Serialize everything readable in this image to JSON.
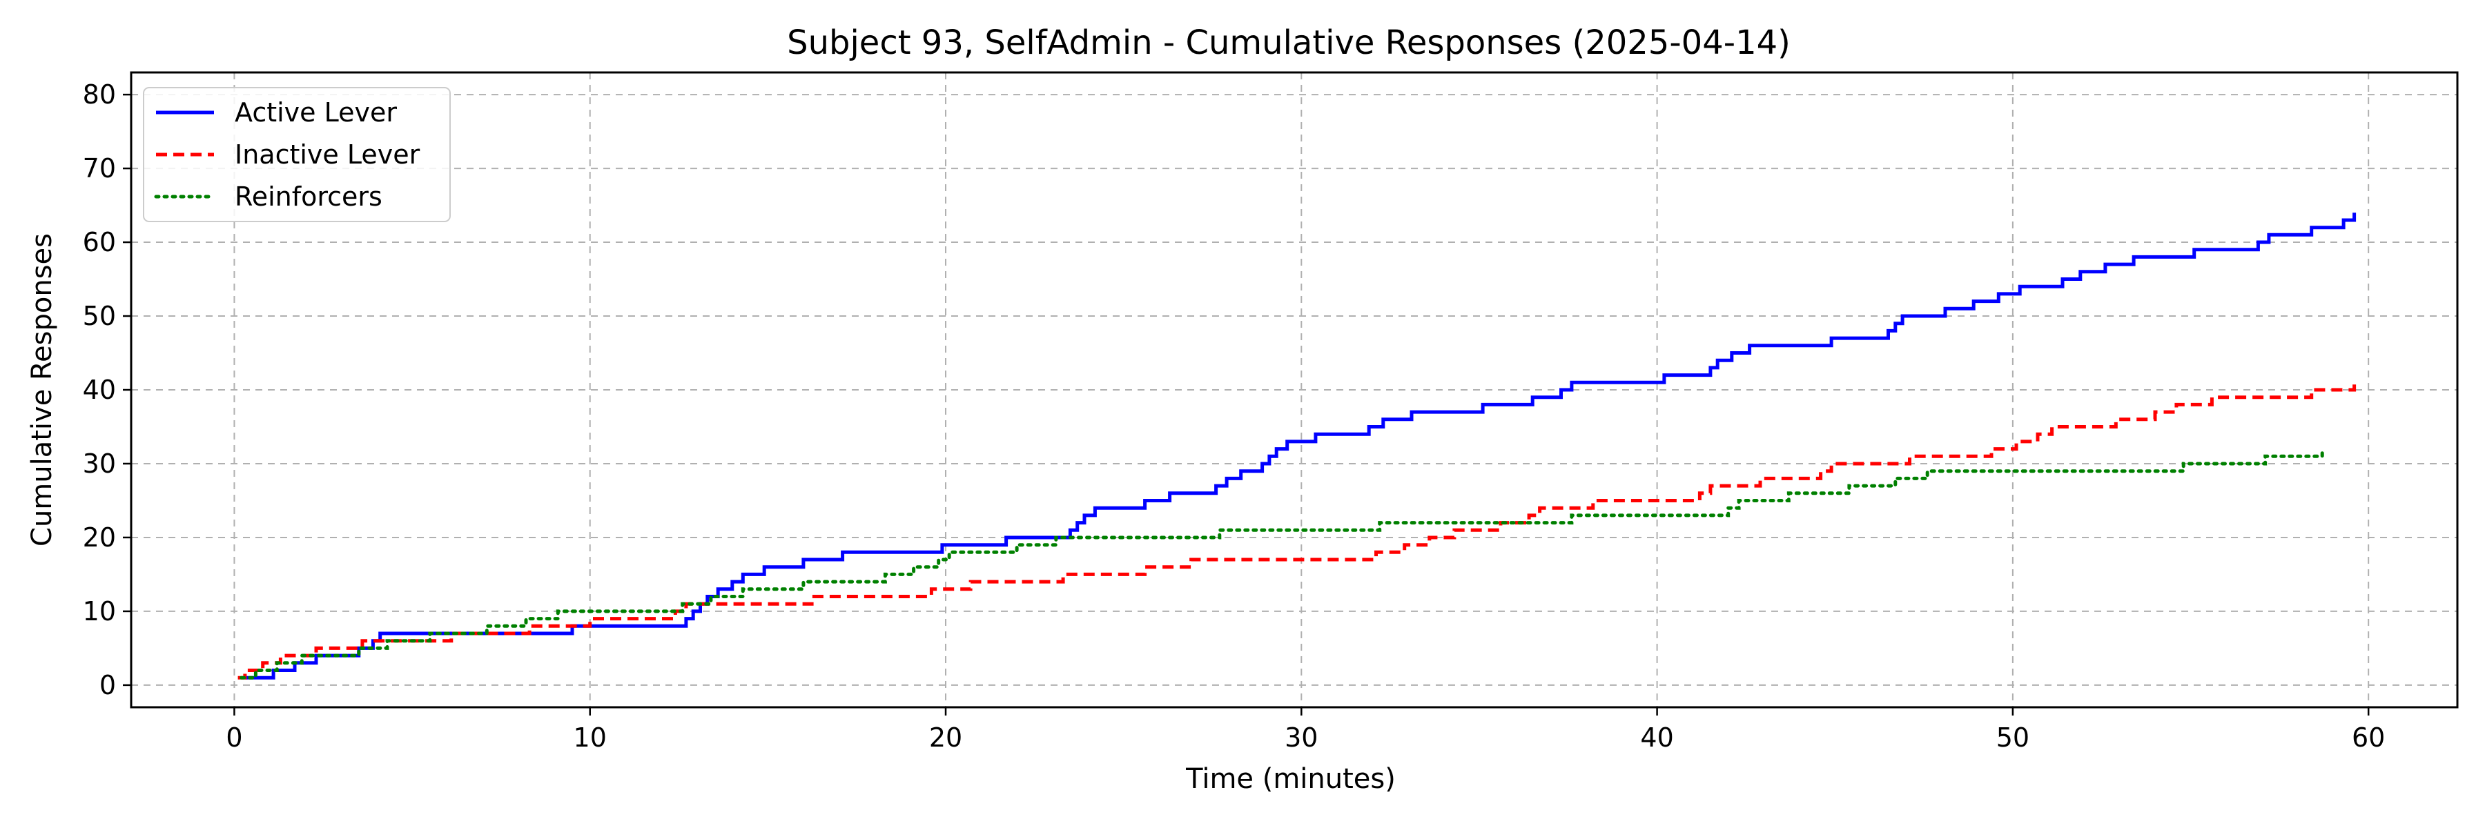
{
  "chart_data": {
    "type": "line",
    "title": "Subject 93, SelfAdmin - Cumulative Responses (2025-04-14)",
    "xlabel": "Time (minutes)",
    "ylabel": "Cumulative Responses",
    "xlim": [
      -2.9,
      62.5
    ],
    "ylim": [
      -3,
      83
    ],
    "xticks": [
      0,
      10,
      20,
      30,
      40,
      50,
      60
    ],
    "yticks": [
      0,
      10,
      20,
      30,
      40,
      50,
      60,
      70,
      80
    ],
    "grid": true,
    "grid_style": "dashed",
    "legend_position": "upper-left",
    "series": [
      {
        "name": "Active Lever",
        "color": "#0000ff",
        "line_style": "solid",
        "x": [
          0.3,
          1.1,
          1.7,
          2.3,
          3.5,
          3.9,
          4.1,
          9.5,
          12.7,
          12.9,
          13.1,
          13.3,
          13.6,
          14.0,
          14.3,
          14.9,
          16.0,
          17.1,
          19.9,
          21.7,
          23.5,
          23.7,
          23.9,
          24.2,
          25.6,
          26.3,
          27.6,
          27.9,
          28.3,
          28.9,
          29.1,
          29.3,
          29.6,
          30.4,
          31.9,
          32.3,
          33.1,
          35.1,
          36.5,
          37.3,
          37.6,
          40.2,
          41.5,
          41.7,
          42.1,
          42.6,
          44.9,
          46.5,
          46.7,
          46.9,
          48.1,
          48.9,
          49.6,
          50.2,
          51.4,
          51.9,
          52.6,
          53.4,
          55.1,
          56.9,
          57.2,
          58.4,
          59.3,
          59.6
        ],
        "y": [
          1,
          2,
          3,
          4,
          5,
          6,
          7,
          8,
          9,
          10,
          11,
          12,
          13,
          14,
          15,
          16,
          17,
          18,
          19,
          20,
          21,
          22,
          23,
          24,
          25,
          26,
          27,
          28,
          29,
          30,
          31,
          32,
          33,
          34,
          35,
          36,
          37,
          38,
          39,
          40,
          41,
          42,
          43,
          44,
          45,
          46,
          47,
          48,
          49,
          50,
          51,
          52,
          53,
          54,
          55,
          56,
          57,
          58,
          59,
          60,
          61,
          62,
          63,
          64
        ]
      },
      {
        "name": "Inactive Lever",
        "color": "#ff0000",
        "line_style": "dashed",
        "x": [
          0.1,
          0.3,
          0.8,
          1.3,
          2.3,
          3.6,
          6.1,
          8.3,
          10.0,
          12.4,
          12.7,
          16.3,
          19.6,
          20.7,
          23.3,
          25.6,
          26.9,
          32.1,
          32.9,
          33.6,
          34.3,
          35.6,
          36.4,
          36.7,
          38.2,
          41.2,
          41.5,
          42.9,
          44.6,
          44.9,
          47.1,
          49.4,
          50.1,
          50.7,
          51.1,
          52.9,
          54.0,
          54.6,
          55.6,
          58.4,
          59.6
        ],
        "y": [
          1,
          2,
          3,
          4,
          5,
          6,
          7,
          8,
          9,
          10,
          11,
          12,
          13,
          14,
          15,
          16,
          17,
          18,
          19,
          20,
          21,
          22,
          23,
          24,
          25,
          26,
          27,
          28,
          29,
          30,
          31,
          32,
          33,
          34,
          35,
          36,
          37,
          38,
          39,
          40,
          41
        ]
      },
      {
        "name": "Reinforcers",
        "color": "#008000",
        "line_style": "dotted",
        "x": [
          0.2,
          0.6,
          1.2,
          1.9,
          3.5,
          4.3,
          5.5,
          7.1,
          8.2,
          9.1,
          12.6,
          13.4,
          14.3,
          16.0,
          18.3,
          19.1,
          19.8,
          20.1,
          22.0,
          23.1,
          27.7,
          32.2,
          37.6,
          42.0,
          42.3,
          43.7,
          45.4,
          46.7,
          47.6,
          54.8,
          57.1,
          58.7
        ],
        "y": [
          1,
          2,
          3,
          4,
          5,
          6,
          7,
          8,
          9,
          10,
          11,
          12,
          13,
          14,
          15,
          16,
          17,
          18,
          19,
          20,
          21,
          22,
          23,
          24,
          25,
          26,
          27,
          28,
          29,
          30,
          31,
          32
        ]
      }
    ]
  }
}
